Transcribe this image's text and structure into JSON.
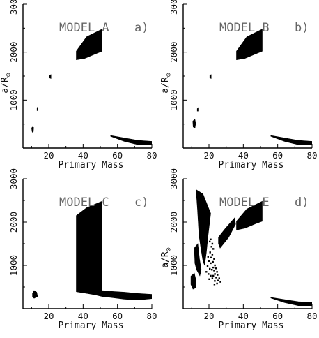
{
  "chart_data": [
    {
      "type": "scatter",
      "title": "MODEL A",
      "panel_label": "a)",
      "xlabel": "Primary Mass",
      "ylabel_main": "a/R",
      "ylabel_sub": "⊙",
      "xlim": [
        5,
        80
      ],
      "ylim": [
        0,
        3000
      ],
      "x_ticks": [
        "20",
        "40",
        "60",
        "80"
      ],
      "y_ticks": [
        "1000",
        "2000",
        "3000"
      ],
      "regions": [
        {
          "poly": [
            [
              36,
              2020
            ],
            [
              42,
              2320
            ],
            [
              51,
              2480
            ],
            [
              51,
              2020
            ],
            [
              47,
              1960
            ],
            [
              41,
              1870
            ],
            [
              36,
              1840
            ]
          ]
        },
        {
          "poly": [
            [
              56,
              260
            ],
            [
              64,
              210
            ],
            [
              72,
              160
            ],
            [
              80,
              140
            ],
            [
              80,
              70
            ],
            [
              72,
              70
            ],
            [
              64,
              140
            ],
            [
              56,
              245
            ]
          ]
        },
        {
          "poly": [
            [
              20.5,
              1520
            ],
            [
              21.3,
              1530
            ],
            [
              21.3,
              1450
            ],
            [
              20.5,
              1460
            ]
          ]
        },
        {
          "poly": [
            [
              13.2,
              840
            ],
            [
              13.7,
              860
            ],
            [
              13.7,
              780
            ],
            [
              13.2,
              780
            ]
          ]
        },
        {
          "poly": [
            [
              10,
              420
            ],
            [
              10.6,
              440
            ],
            [
              11.2,
              430
            ],
            [
              11.0,
              340
            ],
            [
              10.4,
              330
            ]
          ]
        }
      ]
    },
    {
      "type": "scatter",
      "title": "MODEL B",
      "panel_label": "b)",
      "xlabel": "Primary Mass",
      "ylabel_main": "a/R",
      "ylabel_sub": "⊙",
      "xlim": [
        5,
        80
      ],
      "ylim": [
        0,
        3000
      ],
      "x_ticks": [
        "20",
        "40",
        "60",
        "80"
      ],
      "y_ticks": [
        "1000",
        "2000",
        "3000"
      ],
      "regions": [
        {
          "poly": [
            [
              36,
              2020
            ],
            [
              42,
              2320
            ],
            [
              51,
              2480
            ],
            [
              51,
              2020
            ],
            [
              47,
              1960
            ],
            [
              41,
              1870
            ],
            [
              36,
              1840
            ]
          ]
        },
        {
          "poly": [
            [
              56,
              260
            ],
            [
              64,
              210
            ],
            [
              72,
              160
            ],
            [
              80,
              140
            ],
            [
              80,
              70
            ],
            [
              72,
              70
            ],
            [
              64,
              140
            ],
            [
              56,
              245
            ]
          ]
        },
        {
          "poly": [
            [
              20.5,
              1520
            ],
            [
              21.3,
              1530
            ],
            [
              21.3,
              1450
            ],
            [
              20.5,
              1460
            ]
          ]
        },
        {
          "poly": [
            [
              13.2,
              820
            ],
            [
              13.7,
              840
            ],
            [
              13.7,
              770
            ],
            [
              13.2,
              770
            ]
          ]
        },
        {
          "poly": [
            [
              10.6,
              560
            ],
            [
              11.8,
              600
            ],
            [
              12.3,
              520
            ],
            [
              11.9,
              420
            ],
            [
              10.8,
              440
            ]
          ]
        }
      ]
    },
    {
      "type": "scatter",
      "title": "MODEL C",
      "panel_label": "c)",
      "xlabel": "Primary Mass",
      "ylabel_main": "",
      "ylabel_sub": "",
      "xlim": [
        5,
        80
      ],
      "ylim": [
        0,
        3000
      ],
      "x_ticks": [
        "20",
        "40",
        "60",
        "80"
      ],
      "y_ticks": [
        "1000",
        "2000",
        "3000"
      ],
      "regions": [
        {
          "poly": [
            [
              36,
              2150
            ],
            [
              42,
              2330
            ],
            [
              51,
              2480
            ],
            [
              51,
              420
            ],
            [
              56,
              400
            ],
            [
              64,
              380
            ],
            [
              72,
              350
            ],
            [
              80,
              330
            ],
            [
              80,
              230
            ],
            [
              72,
              200
            ],
            [
              64,
              220
            ],
            [
              56,
              260
            ],
            [
              51,
              280
            ],
            [
              47,
              320
            ],
            [
              41,
              360
            ],
            [
              36,
              390
            ]
          ]
        },
        {
          "poly": [
            [
              10.5,
              350
            ],
            [
              11.5,
              420
            ],
            [
              13,
              380
            ],
            [
              13.5,
              280
            ],
            [
              11.5,
              240
            ],
            [
              10.5,
              270
            ]
          ]
        }
      ]
    },
    {
      "type": "scatter",
      "title": "MODEL E",
      "panel_label": "d)",
      "xlabel": "Primary Mass",
      "ylabel_main": "a/R",
      "ylabel_sub": "⊙",
      "xlim": [
        5,
        80
      ],
      "ylim": [
        0,
        3000
      ],
      "x_ticks": [
        "20",
        "40",
        "60",
        "80"
      ],
      "y_ticks": [
        "1000",
        "2000",
        "3000"
      ],
      "regions": [
        {
          "poly": [
            [
              36,
              2020
            ],
            [
              42,
              2300
            ],
            [
              51,
              2480
            ],
            [
              51,
              2020
            ],
            [
              47,
              1960
            ],
            [
              41,
              1860
            ],
            [
              36,
              1820
            ]
          ]
        },
        {
          "poly": [
            [
              56,
              260
            ],
            [
              64,
              210
            ],
            [
              72,
              160
            ],
            [
              80,
              140
            ],
            [
              80,
              70
            ],
            [
              72,
              70
            ],
            [
              64,
              140
            ],
            [
              56,
              245
            ]
          ]
        },
        {
          "poly": [
            [
              12.5,
              2750
            ],
            [
              16.5,
              2650
            ],
            [
              21,
              2200
            ],
            [
              19.5,
              1700
            ],
            [
              18.5,
              1300
            ],
            [
              17.5,
              1000
            ],
            [
              16.5,
              1100
            ],
            [
              15.3,
              1400
            ],
            [
              14.2,
              1700
            ],
            [
              13.3,
              2300
            ]
          ]
        },
        {
          "poly": [
            [
              11.5,
              1400
            ],
            [
              13.5,
              1500
            ],
            [
              14.5,
              1150
            ],
            [
              15.5,
              900
            ],
            [
              14.7,
              760
            ],
            [
              12.8,
              900
            ],
            [
              11.8,
              1050
            ]
          ]
        },
        {
          "poly": [
            [
              25.5,
              1650
            ],
            [
              29.5,
              1850
            ],
            [
              35,
              2100
            ],
            [
              35.5,
              1950
            ],
            [
              31.5,
              1650
            ],
            [
              26.5,
              1400
            ],
            [
              25.5,
              1500
            ]
          ]
        },
        {
          "poly": [
            [
              9.5,
              750
            ],
            [
              11.5,
              820
            ],
            [
              12.5,
              650
            ],
            [
              12.3,
              480
            ],
            [
              10.7,
              450
            ],
            [
              9.5,
              560
            ]
          ]
        }
      ],
      "scatter_points": [
        [
          21,
          1600
        ],
        [
          20.5,
          1550
        ],
        [
          22,
          1500
        ],
        [
          21.5,
          1430
        ],
        [
          22.5,
          1380
        ],
        [
          20.7,
          1300
        ],
        [
          22,
          1250
        ],
        [
          21.2,
          1180
        ],
        [
          23,
          1150
        ],
        [
          22.3,
          1080
        ],
        [
          21,
          1050
        ],
        [
          23.5,
          1000
        ],
        [
          22.5,
          950
        ],
        [
          24,
          930
        ],
        [
          23,
          880
        ],
        [
          21.7,
          900
        ],
        [
          24.7,
          850
        ],
        [
          23.5,
          800
        ],
        [
          25,
          780
        ],
        [
          22.5,
          760
        ],
        [
          24.2,
          720
        ],
        [
          26,
          700
        ],
        [
          25.3,
          650
        ],
        [
          23.4,
          640
        ],
        [
          26.7,
          620
        ],
        [
          24.7,
          580
        ],
        [
          19.5,
          1200
        ],
        [
          20,
          1100
        ],
        [
          19.2,
          980
        ],
        [
          20.5,
          920
        ],
        [
          18.5,
          850
        ],
        [
          19.7,
          800
        ],
        [
          21,
          760
        ],
        [
          22,
          700
        ],
        [
          20.2,
          680
        ],
        [
          23.2,
          560
        ]
      ]
    }
  ]
}
